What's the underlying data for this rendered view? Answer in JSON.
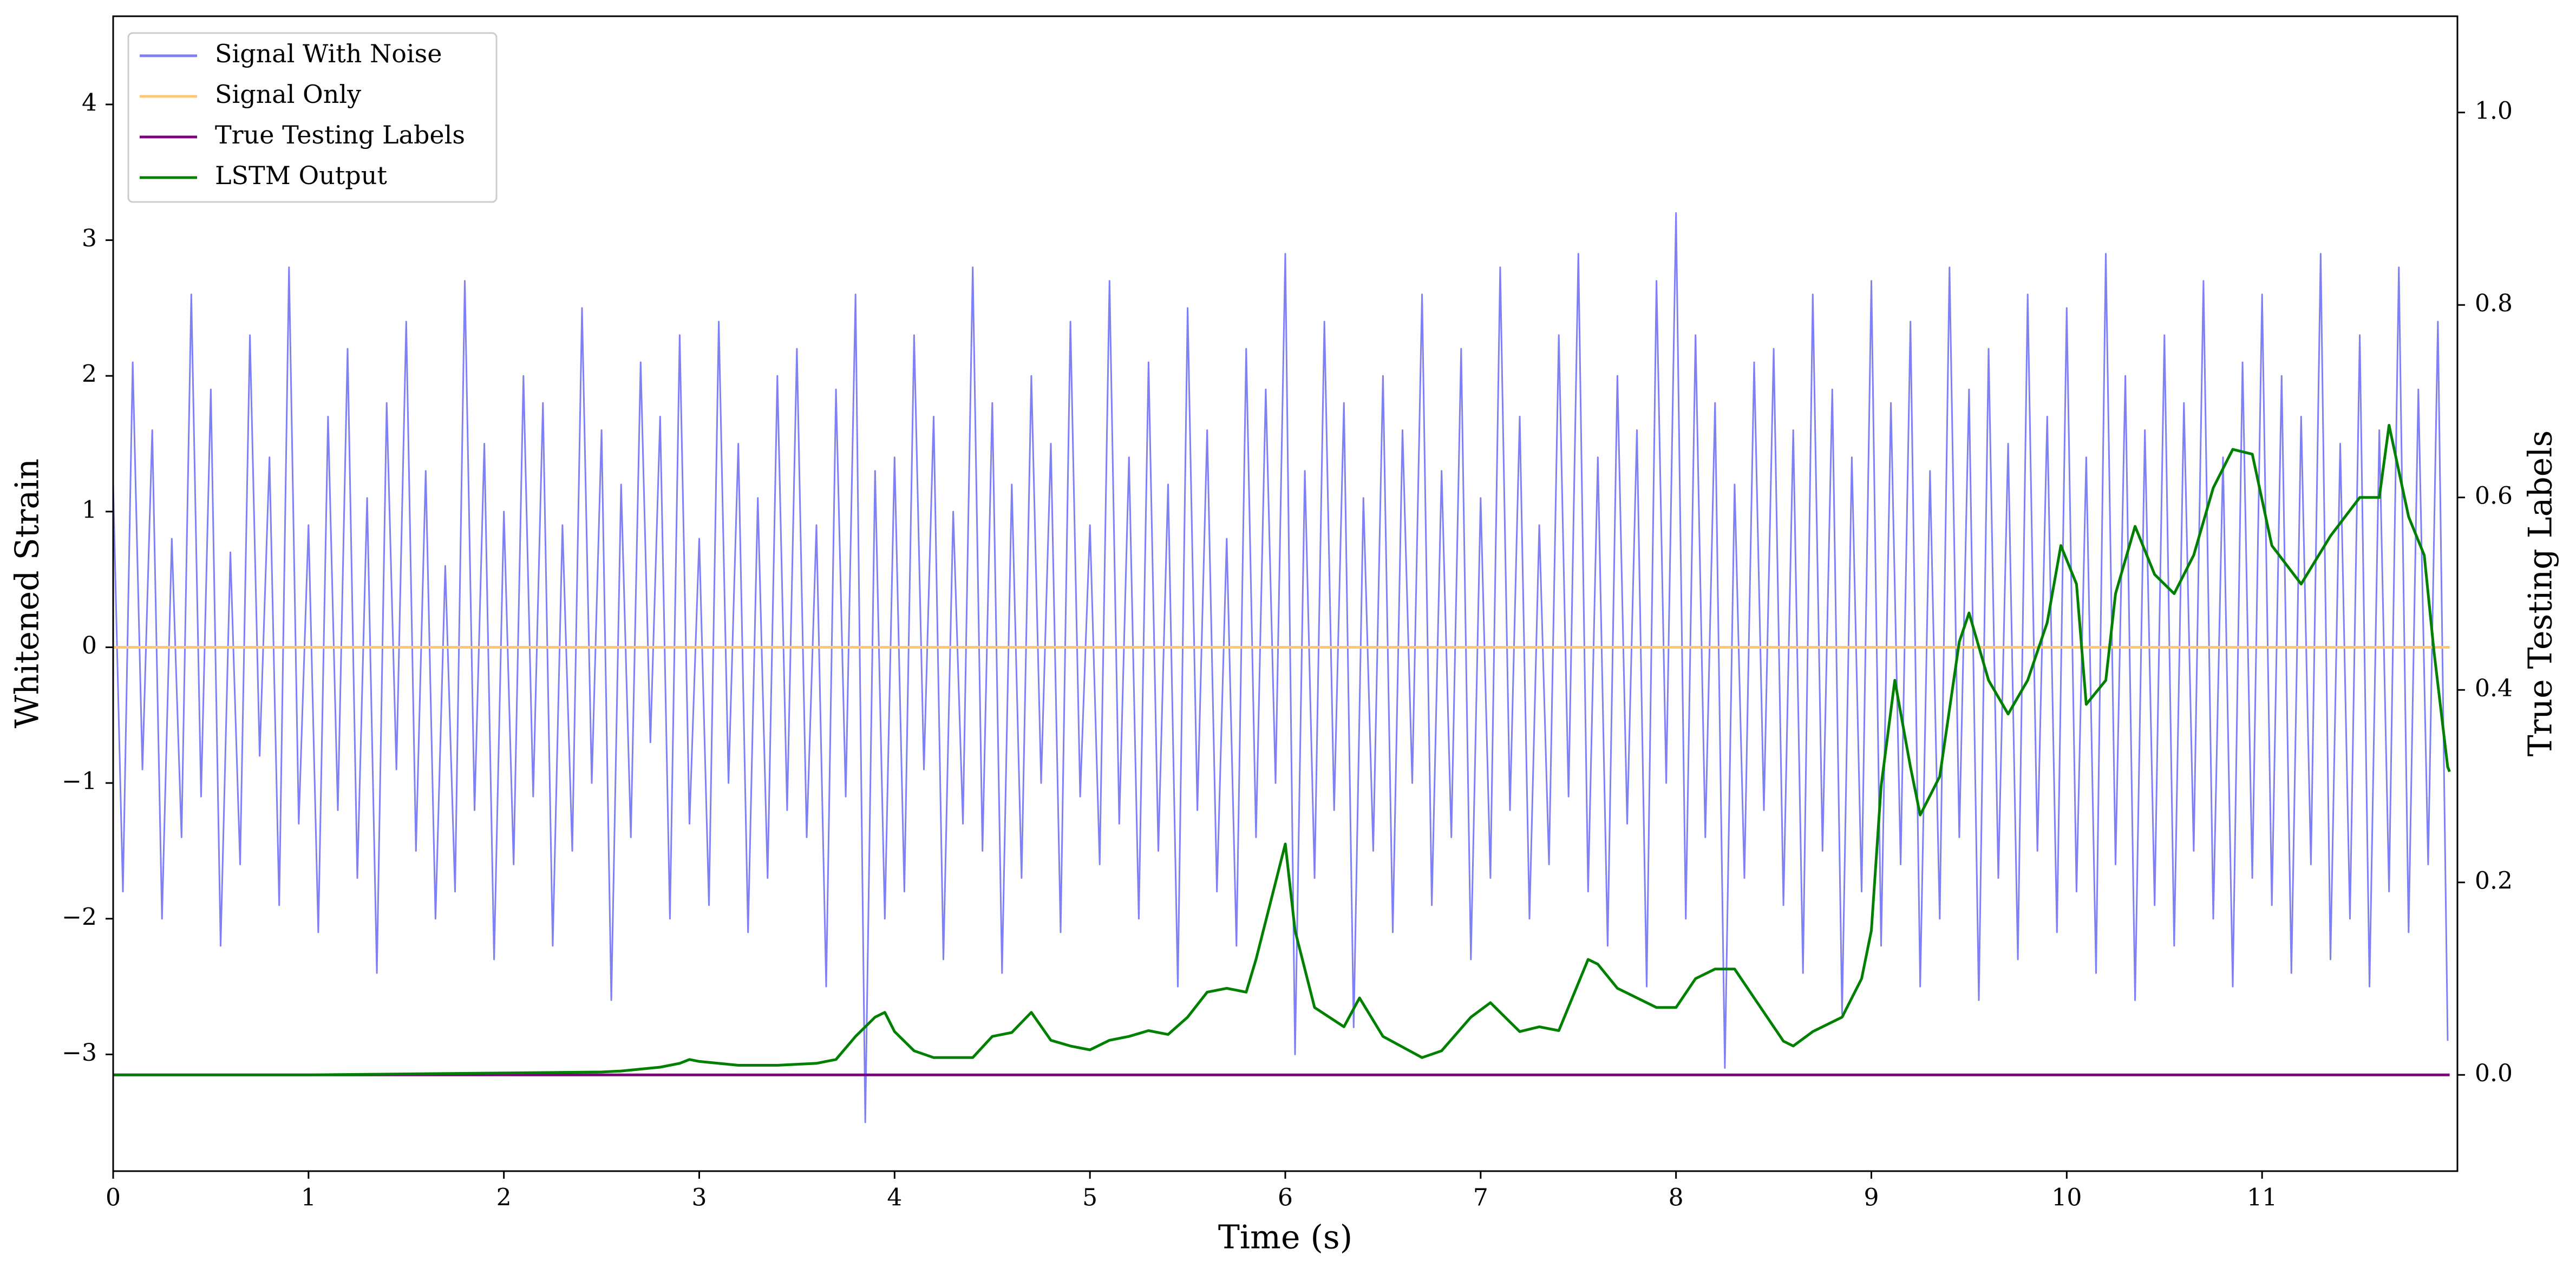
{
  "chart_data": {
    "type": "line",
    "xlabel": "Time (s)",
    "ylabel": "Whitened Strain",
    "y2label": "True Testing Labels",
    "xlim": [
      0,
      12
    ],
    "xticks": [
      0,
      1,
      2,
      3,
      4,
      5,
      6,
      7,
      8,
      9,
      10,
      11
    ],
    "ylim": [
      -3.86,
      4.65
    ],
    "yticks": [
      {
        "value": -3,
        "label": "−3"
      },
      {
        "value": -2,
        "label": "−2"
      },
      {
        "value": -1,
        "label": "−1"
      },
      0,
      1,
      2,
      3,
      4
    ],
    "y2lim": [
      -0.1,
      1.1
    ],
    "y2ticks": [
      {
        "value": 0,
        "label": "0.0"
      },
      {
        "value": 0.2,
        "label": "0.2"
      },
      {
        "value": 0.4,
        "label": "0.4"
      },
      {
        "value": 0.6,
        "label": "0.6"
      },
      {
        "value": 0.8,
        "label": "0.8"
      },
      {
        "value": 1,
        "label": "1.0"
      }
    ],
    "legend": "upper left",
    "series": [
      {
        "name": "Signal With Noise",
        "color": "#8080f5",
        "x": [
          0,
          0.05,
          0.1,
          0.15,
          0.2,
          0.25,
          0.3,
          0.35,
          0.4,
          0.45,
          0.5,
          0.55,
          0.6,
          0.65,
          0.7,
          0.75,
          0.8,
          0.85,
          0.9,
          0.95,
          1,
          1.05,
          1.1,
          1.15,
          1.2,
          1.25,
          1.3,
          1.35,
          1.4,
          1.45,
          1.5,
          1.55,
          1.6,
          1.65,
          1.7,
          1.75,
          1.8,
          1.85,
          1.9,
          1.95,
          2,
          2.05,
          2.1,
          2.15,
          2.2,
          2.25,
          2.3,
          2.35,
          2.4,
          2.45,
          2.5,
          2.55,
          2.6,
          2.65,
          2.7,
          2.75,
          2.8,
          2.85,
          2.9,
          2.95,
          3,
          3.05,
          3.1,
          3.15,
          3.2,
          3.25,
          3.3,
          3.35,
          3.4,
          3.45,
          3.5,
          3.55,
          3.6,
          3.65,
          3.7,
          3.75,
          3.8,
          3.85,
          3.9,
          3.95,
          4,
          4.05,
          4.1,
          4.15,
          4.2,
          4.25,
          4.3,
          4.35,
          4.4,
          4.45,
          4.5,
          4.55,
          4.6,
          4.65,
          4.7,
          4.75,
          4.8,
          4.85,
          4.9,
          4.95,
          5,
          5.05,
          5.1,
          5.15,
          5.2,
          5.25,
          5.3,
          5.35,
          5.4,
          5.45,
          5.5,
          5.55,
          5.6,
          5.65,
          5.7,
          5.75,
          5.8,
          5.85,
          5.9,
          5.95,
          6,
          6.05,
          6.1,
          6.15,
          6.2,
          6.25,
          6.3,
          6.35,
          6.4,
          6.45,
          6.5,
          6.55,
          6.6,
          6.65,
          6.7,
          6.75,
          6.8,
          6.85,
          6.9,
          6.95,
          7,
          7.05,
          7.1,
          7.15,
          7.2,
          7.25,
          7.3,
          7.35,
          7.4,
          7.45,
          7.5,
          7.55,
          7.6,
          7.65,
          7.7,
          7.75,
          7.8,
          7.85,
          7.9,
          7.95,
          8,
          8.05,
          8.1,
          8.15,
          8.2,
          8.25,
          8.3,
          8.35,
          8.4,
          8.45,
          8.5,
          8.55,
          8.6,
          8.65,
          8.7,
          8.75,
          8.8,
          8.85,
          8.9,
          8.95,
          9,
          9.05,
          9.1,
          9.15,
          9.2,
          9.25,
          9.3,
          9.35,
          9.4,
          9.45,
          9.5,
          9.55,
          9.6,
          9.65,
          9.7,
          9.75,
          9.8,
          9.85,
          9.9,
          9.95,
          10,
          10.05,
          10.1,
          10.15,
          10.2,
          10.25,
          10.3,
          10.35,
          10.4,
          10.45,
          10.5,
          10.55,
          10.6,
          10.65,
          10.7,
          10.75,
          10.8,
          10.85,
          10.9,
          10.95,
          11,
          11.05,
          11.1,
          11.15,
          11.2,
          11.25,
          11.3,
          11.35,
          11.4,
          11.45,
          11.5,
          11.55,
          11.6,
          11.65,
          11.7,
          11.75,
          11.8,
          11.85,
          11.9,
          11.95
        ],
        "values": [
          1.2,
          -1.8,
          2.1,
          -0.9,
          1.6,
          -2.0,
          0.8,
          -1.4,
          2.6,
          -1.1,
          1.9,
          -2.2,
          0.7,
          -1.6,
          2.3,
          -0.8,
          1.4,
          -1.9,
          2.8,
          -1.3,
          0.9,
          -2.1,
          1.7,
          -1.2,
          2.2,
          -1.7,
          1.1,
          -2.4,
          1.8,
          -0.9,
          2.4,
          -1.5,
          1.3,
          -2.0,
          0.6,
          -1.8,
          2.7,
          -1.2,
          1.5,
          -2.3,
          1.0,
          -1.6,
          2.0,
          -1.1,
          1.8,
          -2.2,
          0.9,
          -1.5,
          2.5,
          -1.0,
          1.6,
          -2.6,
          1.2,
          -1.4,
          2.1,
          -0.7,
          1.7,
          -2.0,
          2.3,
          -1.3,
          0.8,
          -1.9,
          2.4,
          -1.0,
          1.5,
          -2.1,
          1.1,
          -1.7,
          2.0,
          -1.2,
          2.2,
          -1.4,
          0.9,
          -2.5,
          1.9,
          -1.1,
          2.6,
          -3.5,
          1.3,
          -2.0,
          1.4,
          -1.8,
          2.3,
          -0.9,
          1.7,
          -2.3,
          1.0,
          -1.3,
          2.8,
          -1.5,
          1.8,
          -2.4,
          1.2,
          -1.7,
          2.0,
          -1.0,
          1.5,
          -2.1,
          2.4,
          -1.1,
          0.9,
          -1.6,
          2.7,
          -1.3,
          1.4,
          -2.0,
          2.1,
          -1.5,
          1.2,
          -2.5,
          2.5,
          -1.2,
          1.6,
          -1.8,
          0.8,
          -2.2,
          2.2,
          -1.4,
          1.9,
          -1.0,
          2.9,
          -3.0,
          1.3,
          -1.7,
          2.4,
          -1.2,
          1.8,
          -2.8,
          1.1,
          -1.5,
          2.0,
          -2.1,
          1.6,
          -1.0,
          2.6,
          -1.9,
          1.3,
          -1.4,
          2.2,
          -2.3,
          1.1,
          -1.7,
          2.8,
          -1.2,
          1.7,
          -2.0,
          0.9,
          -1.6,
          2.3,
          -1.1,
          2.9,
          -1.8,
          1.4,
          -2.2,
          2.0,
          -1.3,
          1.6,
          -2.5,
          2.7,
          -1.0,
          3.2,
          -2.0,
          2.3,
          -1.4,
          1.8,
          -3.1,
          1.2,
          -1.7,
          2.1,
          -1.2,
          2.2,
          -1.9,
          1.6,
          -2.4,
          2.6,
          -1.5,
          1.9,
          -2.7,
          1.4,
          -1.8,
          2.7,
          -2.2,
          1.8,
          -1.6,
          2.4,
          -2.5,
          1.3,
          -2.0,
          2.8,
          -1.4,
          1.9,
          -2.6,
          2.2,
          -1.7,
          1.5,
          -2.3,
          2.6,
          -1.5,
          1.7,
          -2.1,
          2.5,
          -1.8,
          1.4,
          -2.4,
          2.9,
          -1.6,
          2.0,
          -2.6,
          1.6,
          -1.9,
          2.3,
          -2.2,
          1.8,
          -1.5,
          2.7,
          -2.0,
          1.4,
          -2.5,
          2.1,
          -1.7,
          2.6,
          -1.9,
          2.0,
          -2.4,
          1.7,
          -1.6,
          2.9,
          -2.3,
          1.5,
          -2.0,
          2.3,
          -2.5,
          1.6,
          -1.8,
          2.8,
          -2.1,
          1.9,
          -1.6,
          2.4,
          -2.9
        ]
      },
      {
        "name": "Signal Only",
        "color": "#ffc870",
        "x": [
          0,
          11.96
        ],
        "values": [
          0,
          0
        ]
      },
      {
        "name": "True Testing Labels",
        "color": "#800080",
        "axis": "y2",
        "x": [
          0,
          11.96
        ],
        "values": [
          0,
          0
        ]
      },
      {
        "name": "LSTM Output",
        "color": "#008000",
        "axis": "y2",
        "x": [
          0,
          0.5,
          1,
          1.5,
          2,
          2.5,
          2.6,
          2.8,
          2.9,
          2.95,
          3.0,
          3.2,
          3.4,
          3.6,
          3.7,
          3.8,
          3.9,
          3.95,
          4.0,
          4.1,
          4.2,
          4.4,
          4.5,
          4.6,
          4.7,
          4.8,
          4.9,
          5.0,
          5.1,
          5.2,
          5.3,
          5.4,
          5.5,
          5.6,
          5.7,
          5.8,
          5.85,
          5.95,
          6.0,
          6.05,
          6.15,
          6.3,
          6.38,
          6.5,
          6.7,
          6.8,
          6.95,
          7.05,
          7.2,
          7.3,
          7.4,
          7.55,
          7.6,
          7.7,
          7.9,
          8.0,
          8.1,
          8.2,
          8.3,
          8.4,
          8.55,
          8.6,
          8.7,
          8.85,
          8.95,
          9.0,
          9.05,
          9.12,
          9.2,
          9.25,
          9.35,
          9.45,
          9.5,
          9.6,
          9.7,
          9.8,
          9.9,
          9.97,
          10.05,
          10.1,
          10.2,
          10.25,
          10.35,
          10.45,
          10.55,
          10.65,
          10.75,
          10.85,
          10.95,
          11.05,
          11.2,
          11.35,
          11.5,
          11.6,
          11.65,
          11.75,
          11.83,
          11.88,
          11.95,
          11.96
        ],
        "values": [
          0,
          0,
          0,
          0.001,
          0.002,
          0.003,
          0.004,
          0.008,
          0.012,
          0.016,
          0.014,
          0.01,
          0.01,
          0.012,
          0.016,
          0.04,
          0.06,
          0.065,
          0.045,
          0.025,
          0.018,
          0.018,
          0.04,
          0.044,
          0.065,
          0.036,
          0.03,
          0.026,
          0.036,
          0.04,
          0.046,
          0.042,
          0.06,
          0.086,
          0.09,
          0.086,
          0.12,
          0.2,
          0.24,
          0.15,
          0.07,
          0.05,
          0.08,
          0.04,
          0.018,
          0.025,
          0.06,
          0.075,
          0.045,
          0.05,
          0.046,
          0.12,
          0.115,
          0.09,
          0.07,
          0.07,
          0.1,
          0.11,
          0.11,
          0.08,
          0.035,
          0.03,
          0.045,
          0.06,
          0.1,
          0.15,
          0.3,
          0.41,
          0.32,
          0.27,
          0.31,
          0.45,
          0.48,
          0.41,
          0.375,
          0.41,
          0.47,
          0.55,
          0.51,
          0.385,
          0.41,
          0.5,
          0.57,
          0.52,
          0.5,
          0.54,
          0.61,
          0.65,
          0.645,
          0.55,
          0.51,
          0.56,
          0.6,
          0.6,
          0.675,
          0.58,
          0.54,
          0.44,
          0.32,
          0.315
        ]
      }
    ]
  }
}
